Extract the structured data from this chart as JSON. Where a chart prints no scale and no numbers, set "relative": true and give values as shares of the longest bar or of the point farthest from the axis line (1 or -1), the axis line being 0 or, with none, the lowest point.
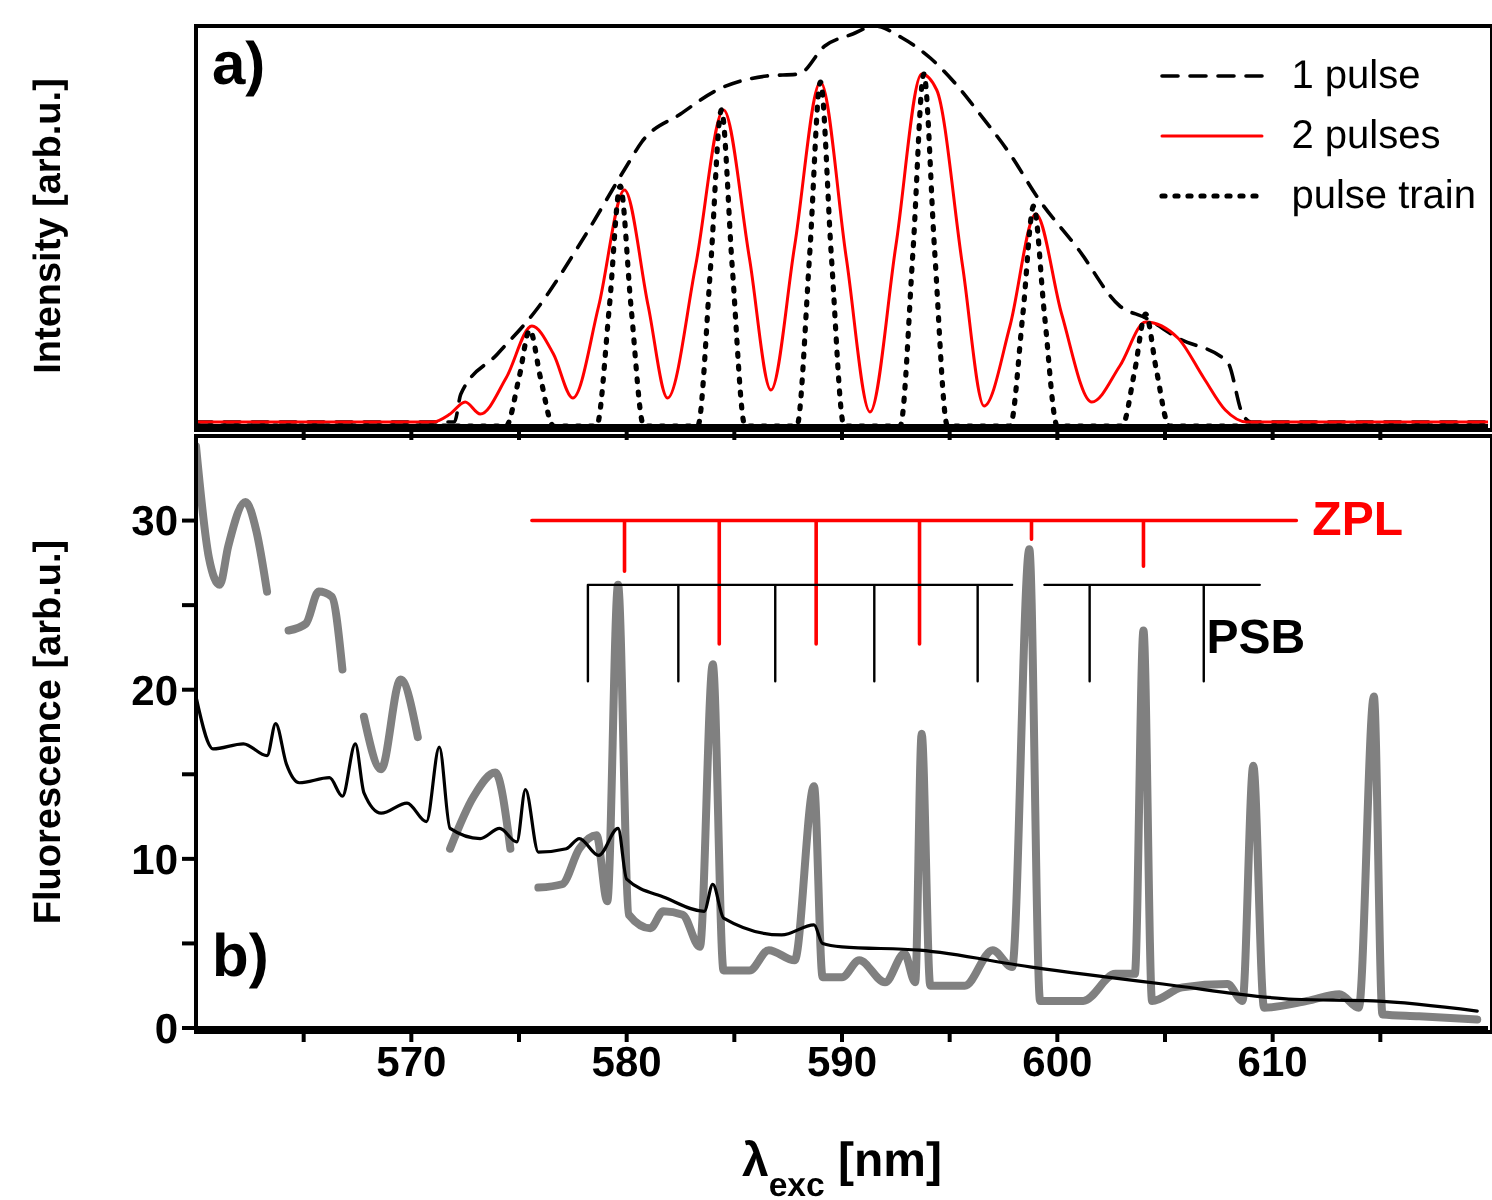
{
  "chart_data": [
    {
      "type": "line",
      "ylabel": "Intensity [arb.u.]",
      "relative": true,
      "xlim": [
        560,
        620
      ],
      "xticks": [
        {
          "value": 565,
          "label": null
        },
        570,
        {
          "value": 575,
          "label": null
        },
        580,
        {
          "value": 585,
          "label": null
        },
        590,
        {
          "value": 595,
          "label": null
        },
        600,
        {
          "value": 605,
          "label": null
        },
        610,
        {
          "value": 615,
          "label": null
        }
      ],
      "tick_labels": false,
      "legend": "top right",
      "marker": "none",
      "annotations": [
        "a)"
      ],
      "series": [
        {
          "name": "1 pulse",
          "color": "#000000",
          "line_style": "dashed",
          "x": [
            560,
            572.0,
            572.3,
            574.0,
            575.8,
            578.0,
            580.0,
            580.7,
            582.5,
            584.2,
            586.5,
            588.0,
            589.2,
            590.5,
            591.5,
            592.8,
            594.1,
            595.2,
            596.4,
            597.8,
            599.1,
            601.0,
            602.9,
            604.1,
            605.6,
            607.9,
            608.6,
            609.0,
            620
          ],
          "values": [
            0.01,
            0.01,
            0.08,
            0.18,
            0.29,
            0.47,
            0.65,
            0.71,
            0.78,
            0.84,
            0.875,
            0.88,
            0.95,
            0.98,
            1,
            0.97,
            0.92,
            0.86,
            0.78,
            0.68,
            0.57,
            0.44,
            0.3,
            0.27,
            0.22,
            0.16,
            0.03,
            0.01,
            0.01
          ]
        },
        {
          "name": "2 pulses",
          "color": "#ff0000",
          "line_style": "solid",
          "x": [
            560,
            571.0,
            571.8,
            572.5,
            573.2,
            574.4,
            575.6,
            576.6,
            577.5,
            578.7,
            579.9,
            581.0,
            581.9,
            583.2,
            584.5,
            585.7,
            586.7,
            587.8,
            589.0,
            590.2,
            591.3,
            592.5,
            593.7,
            594.4,
            595.6,
            596.6,
            597.8,
            599.0,
            600.2,
            601.6,
            602.9,
            604.1,
            605.6,
            606.8,
            607.8,
            608.8,
            620
          ],
          "values": [
            0.01,
            0.01,
            0.03,
            0.06,
            0.03,
            0.12,
            0.25,
            0.18,
            0.07,
            0.3,
            0.59,
            0.3,
            0.07,
            0.4,
            0.79,
            0.42,
            0.09,
            0.45,
            0.86,
            0.42,
            0.035,
            0.45,
            0.88,
            0.84,
            0.4,
            0.05,
            0.25,
            0.53,
            0.28,
            0.06,
            0.15,
            0.26,
            0.22,
            0.12,
            0.04,
            0.01,
            0.01
          ]
        },
        {
          "name": "pulse train",
          "color": "#000000",
          "line_style": "dotted",
          "x": [
            560,
            574.4,
            575.0,
            575.5,
            576.0,
            576.6,
            578.6,
            579.2,
            579.7,
            580.2,
            580.8,
            583.3,
            583.9,
            584.4,
            584.9,
            585.5,
            587.9,
            588.5,
            589.0,
            589.5,
            590.1,
            592.7,
            593.3,
            593.8,
            594.3,
            594.9,
            597.8,
            598.4,
            598.9,
            599.4,
            600.0,
            603.0,
            603.6,
            604.1,
            604.6,
            605.2,
            620
          ],
          "values": [
            0,
            0,
            0.12,
            0.24,
            0.12,
            0,
            0,
            0.3,
            0.6,
            0.3,
            0,
            0,
            0.4,
            0.79,
            0.4,
            0,
            0,
            0.43,
            0.86,
            0.43,
            0,
            0,
            0.44,
            0.88,
            0.44,
            0,
            0,
            0.28,
            0.55,
            0.28,
            0,
            0,
            0.14,
            0.28,
            0.14,
            0,
            0
          ]
        }
      ]
    },
    {
      "type": "line",
      "xlabel": "λ$_{exc}$ [nm]",
      "ylabel": "Fluorescence [arb.u.]",
      "xlim": [
        560,
        620
      ],
      "xticks": [
        {
          "value": 565,
          "label": null
        },
        570,
        {
          "value": 575,
          "label": null
        },
        580,
        {
          "value": 585,
          "label": null
        },
        590,
        {
          "value": 595,
          "label": null
        },
        600,
        {
          "value": 605,
          "label": null
        },
        610,
        {
          "value": 615,
          "label": null
        }
      ],
      "ylim": [
        0,
        35
      ],
      "yticks": [
        0,
        {
          "value": 5,
          "label": null
        },
        10,
        {
          "value": 15,
          "label": null
        },
        20,
        {
          "value": 25,
          "label": null
        },
        30
      ],
      "legend": false,
      "marker": "none",
      "annotations": [
        "b)"
      ],
      "series": [
        {
          "color": "#808080",
          "line_style": "solid",
          "x": [
            560.0,
            560.6,
            561.1,
            561.5,
            562.3,
            562.8,
            563.3,
            563.9,
            564.3,
            565.1,
            565.7,
            566.3,
            566.8,
            567.3,
            567.8,
            568.6,
            569.5,
            570.3,
            571.2,
            571.8,
            572.9,
            573.9,
            574.6,
            575.3,
            575.9,
            577.0,
            577.8,
            578.6,
            579.1,
            579.6,
            580.1,
            581.1,
            581.7,
            582.6,
            583.4,
            584.0,
            584.5,
            585.7,
            586.6,
            587.8,
            588.7,
            589.1,
            590.0,
            590.8,
            592.0,
            592.9,
            593.4,
            593.7,
            594.1,
            595.7,
            597.0,
            597.9,
            598.7,
            599.2,
            601.2,
            602.7,
            603.6,
            604.0,
            604.4,
            605.8,
            607.9,
            608.6,
            609.1,
            609.6,
            611.6,
            613.1,
            614.0,
            614.7,
            615.1,
            616.8,
            619.5
          ],
          "values": [
            34.4,
            27.8,
            26.2,
            28.5,
            31.1,
            29.4,
            25.8,
            null,
            23.5,
            23.9,
            25.8,
            25.5,
            21.2,
            null,
            18.4,
            15.3,
            20.6,
            17.2,
            null,
            10.6,
            13.7,
            15.1,
            10.6,
            null,
            8.3,
            8.5,
            10.6,
            11.4,
            7.5,
            26.2,
            6.7,
            5.9,
            6.9,
            6.7,
            4.8,
            21.5,
            3.4,
            3.4,
            4.6,
            4.0,
            14.3,
            3.0,
            3.0,
            4.0,
            2.7,
            4.4,
            2.7,
            17.4,
            2.5,
            2.5,
            4.6,
            3.6,
            28.3,
            1.6,
            1.6,
            3.2,
            3.2,
            23.5,
            1.6,
            2.4,
            2.6,
            1.6,
            15.5,
            1.2,
            1.6,
            2.0,
            1.2,
            19.6,
            0.8,
            0.7,
            0.5
          ]
        },
        {
          "color": "#000000",
          "line_style": "solid",
          "x": [
            560.0,
            560.8,
            562.2,
            563.3,
            563.7,
            564.2,
            564.8,
            566.2,
            566.8,
            567.4,
            567.8,
            568.6,
            569.8,
            570.7,
            571.3,
            571.8,
            573.2,
            574.1,
            574.9,
            575.3,
            575.9,
            577.2,
            577.8,
            578.7,
            579.6,
            580.0,
            581.8,
            583.6,
            584.0,
            584.5,
            587.2,
            588.7,
            589.1,
            590.0,
            593.6,
            598.8,
            604.9,
            611.0,
            614.7,
            619.5
          ],
          "values": [
            19.6,
            16.5,
            16.8,
            16.1,
            18.0,
            15.6,
            14.5,
            14.8,
            13.7,
            16.8,
            13.9,
            12.7,
            13.3,
            12.2,
            16.6,
            11.8,
            11.2,
            11.8,
            11.0,
            14.1,
            10.4,
            10.6,
            11.2,
            10.2,
            11.8,
            8.8,
            7.7,
            6.9,
            8.5,
            6.5,
            5.5,
            6.1,
            5.0,
            4.8,
            4.6,
            3.6,
            2.6,
            1.7,
            1.6,
            1.0
          ]
        },
        {
          "type": "line",
          "name": "ZPL",
          "color": "#ff0000",
          "line_style": "solid",
          "x": [
            575.6,
            579.9,
            579.9,
            579.9,
            584.3,
            584.3,
            584.3,
            588.8,
            588.8,
            588.8,
            593.6,
            593.6,
            593.6,
            598.8,
            598.8,
            598.8,
            604.0,
            604.0,
            604.0,
            611.1
          ],
          "values": [
            30,
            30,
            27,
            30,
            30,
            22.7,
            30,
            30,
            22.7,
            30,
            30,
            22.7,
            30,
            30,
            28.9,
            30,
            30,
            27.3,
            30,
            30
          ]
        },
        {
          "type": "line",
          "name": "PSB",
          "color": "#000000",
          "line_style": "solid",
          "x": [
            578.2,
            578.2,
            582.4,
            582.4,
            582.4,
            586.9,
            586.9,
            586.9,
            591.5,
            591.5,
            591.5,
            596.3,
            596.3,
            596.3,
            597.9,
            598.6,
            599.4,
            601.5,
            601.5,
            601.5,
            606.8,
            606.8,
            606.8,
            609.4
          ],
          "values": [
            20.5,
            26.2,
            26.2,
            20.5,
            26.2,
            26.2,
            20.5,
            26.2,
            26.2,
            20.5,
            26.2,
            26.2,
            20.5,
            26.2,
            26.2,
            null,
            26.2,
            26.2,
            20.5,
            26.2,
            26.2,
            20.5,
            26.2,
            26.2
          ]
        }
      ]
    }
  ]
}
